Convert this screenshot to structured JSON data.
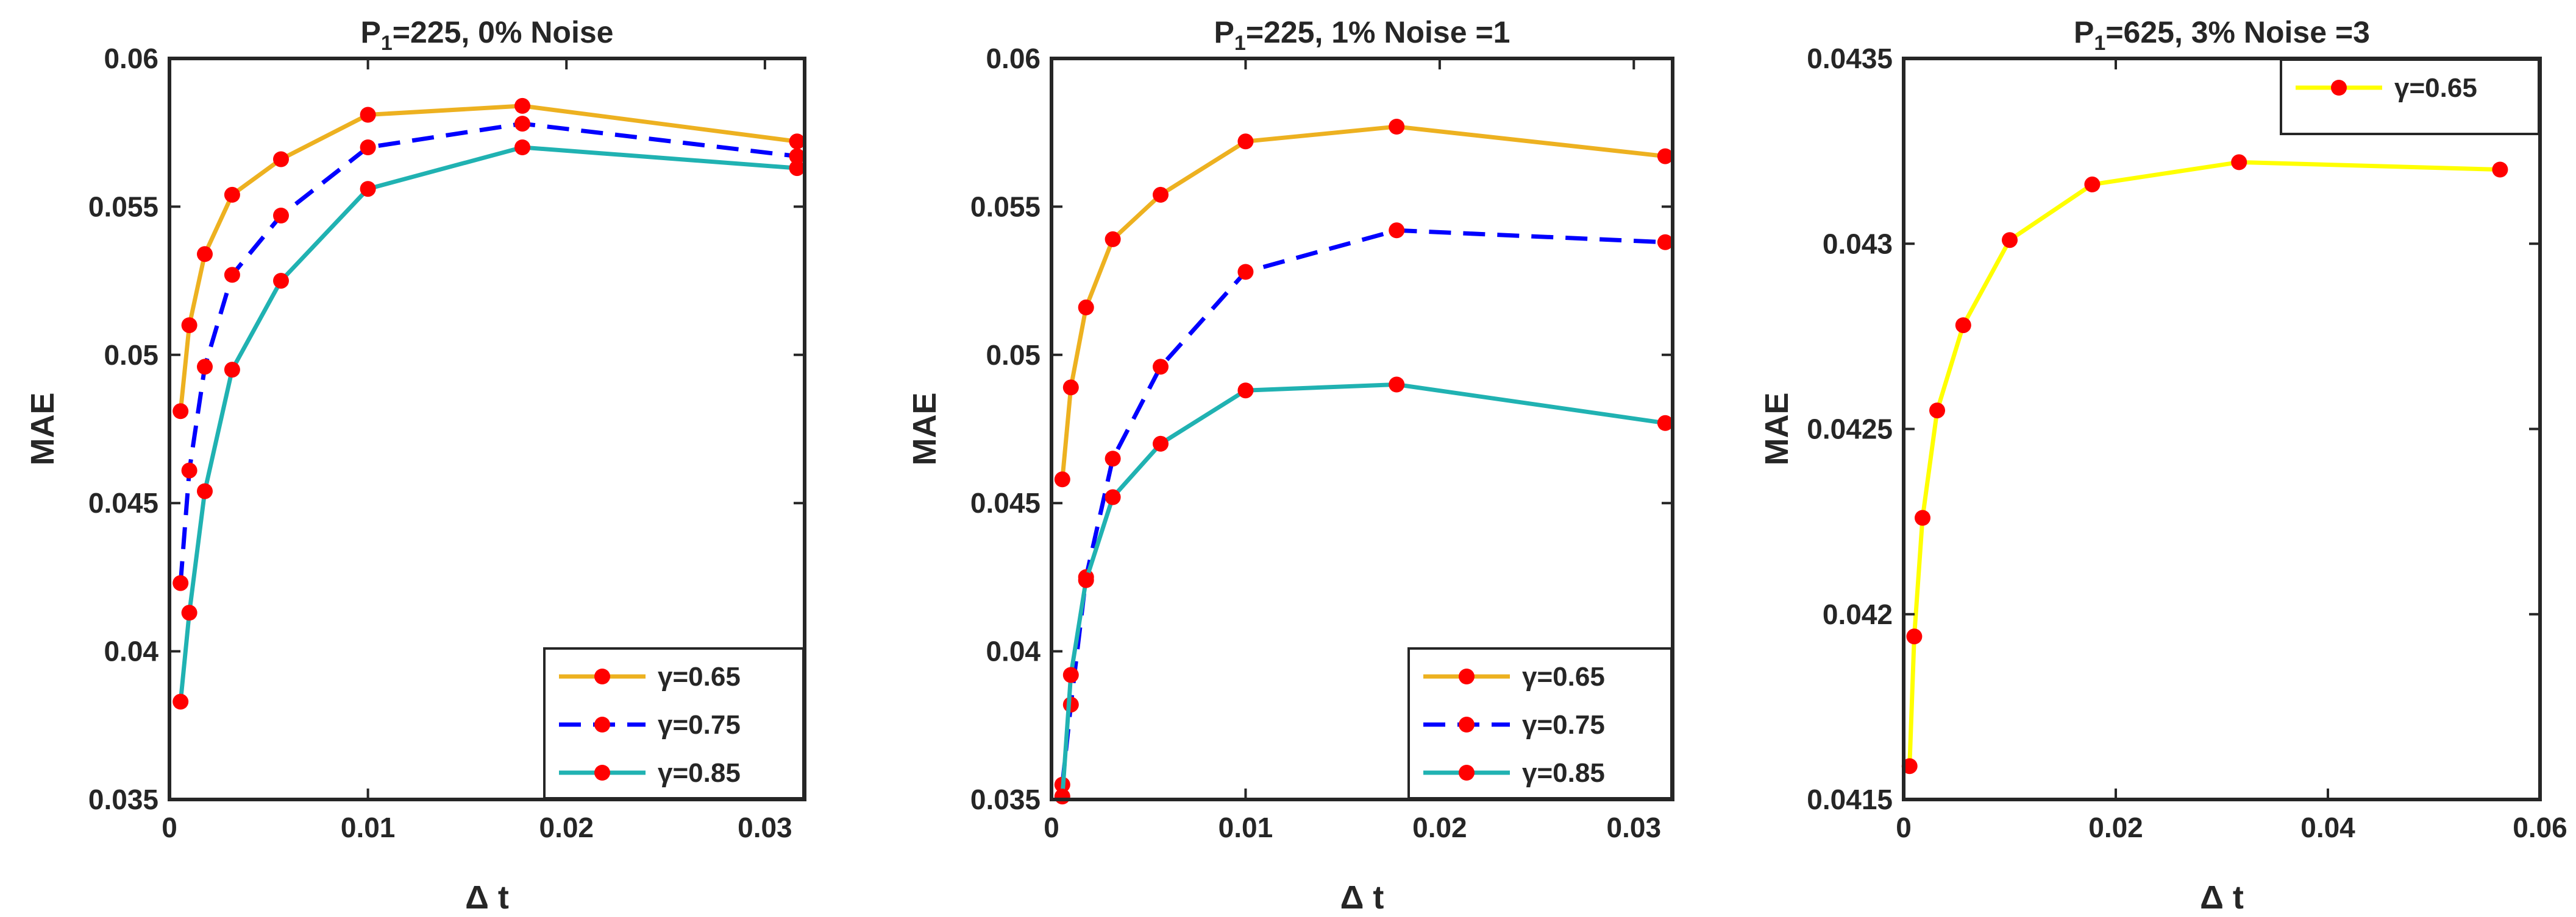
{
  "chart_data": [
    {
      "type": "line",
      "title_main": "P",
      "title_sub": "1",
      "title_rest": "=225, 0% Noise",
      "xlabel": "Δ t",
      "ylabel": "MAE",
      "xlim": [
        0,
        0.032
      ],
      "ylim": [
        0.035,
        0.06
      ],
      "xticks": [
        0,
        0.01,
        0.02,
        0.03
      ],
      "xtick_labels": [
        "0",
        "0.01",
        "0.02",
        "0.03"
      ],
      "yticks": [
        0.035,
        0.04,
        0.045,
        0.05,
        0.055,
        0.06
      ],
      "ytick_labels": [
        "0.035",
        "0.04",
        "0.045",
        "0.05",
        "0.055",
        "0.06"
      ],
      "legend_position": "bottom-right",
      "x": [
        0.00056,
        0.001,
        0.00178,
        0.00316,
        0.00562,
        0.01,
        0.01778,
        0.03162
      ],
      "series": [
        {
          "name": "γ=0.65",
          "color": "#EDB120",
          "dash": "solid",
          "values": [
            0.0481,
            0.051,
            0.0534,
            0.0554,
            0.0566,
            0.0581,
            0.0584,
            0.0572
          ]
        },
        {
          "name": "γ=0.75",
          "color": "#0000FF",
          "dash": "dashed",
          "values": [
            0.0423,
            0.0461,
            0.0496,
            0.0527,
            0.0547,
            0.057,
            0.0578,
            0.0567
          ]
        },
        {
          "name": "γ=0.85",
          "color": "#20B2B2",
          "dash": "solid",
          "values": [
            0.0383,
            0.0413,
            0.0454,
            0.0495,
            0.0525,
            0.0556,
            0.057,
            0.0563
          ]
        }
      ]
    },
    {
      "type": "line",
      "title_main": "P",
      "title_sub": "1",
      "title_rest": "=225, 1% Noise =1",
      "xlabel": "Δ t",
      "ylabel": "MAE",
      "xlim": [
        0,
        0.032
      ],
      "ylim": [
        0.035,
        0.06
      ],
      "xticks": [
        0,
        0.01,
        0.02,
        0.03
      ],
      "xtick_labels": [
        "0",
        "0.01",
        "0.02",
        "0.03"
      ],
      "yticks": [
        0.035,
        0.04,
        0.045,
        0.05,
        0.055,
        0.06
      ],
      "ytick_labels": [
        "0.035",
        "0.04",
        "0.045",
        "0.05",
        "0.055",
        "0.06"
      ],
      "legend_position": "bottom-right",
      "x": [
        0.00056,
        0.001,
        0.00178,
        0.00316,
        0.00562,
        0.01,
        0.01778,
        0.03162
      ],
      "series": [
        {
          "name": "γ=0.65",
          "color": "#EDB120",
          "dash": "solid",
          "values": [
            0.0458,
            0.0489,
            0.0516,
            0.0539,
            0.0554,
            0.0572,
            0.0577,
            0.0567
          ]
        },
        {
          "name": "γ=0.75",
          "color": "#0000FF",
          "dash": "dashed",
          "values": [
            0.0355,
            0.0382,
            0.0425,
            0.0465,
            0.0496,
            0.0528,
            0.0542,
            0.0538
          ]
        },
        {
          "name": "γ=0.85",
          "color": "#20B2B2",
          "dash": "solid",
          "values": [
            0.0351,
            0.0392,
            0.0424,
            0.0452,
            0.047,
            0.0488,
            0.049,
            0.0477
          ]
        }
      ]
    },
    {
      "type": "line",
      "title_main": "P",
      "title_sub": "1",
      "title_rest": "=625, 3% Noise =3",
      "xlabel": "Δ t",
      "ylabel": "MAE",
      "xlim": [
        0,
        0.06
      ],
      "ylim": [
        0.0415,
        0.0435
      ],
      "xticks": [
        0,
        0.02,
        0.04,
        0.06
      ],
      "xtick_labels": [
        "0",
        "0.02",
        "0.04",
        "0.06"
      ],
      "yticks": [
        0.0415,
        0.042,
        0.0425,
        0.043,
        0.0435
      ],
      "ytick_labels": [
        "0.0415",
        "0.042",
        "0.0425",
        "0.043",
        "0.0435"
      ],
      "legend_position": "top-right",
      "x": [
        0.00056,
        0.001,
        0.00178,
        0.00316,
        0.00562,
        0.01,
        0.01778,
        0.03162,
        0.05623
      ],
      "series": [
        {
          "name": "γ=0.65",
          "color": "#FFFF00",
          "dash": "solid",
          "values": [
            0.04159,
            0.04194,
            0.04226,
            0.04255,
            0.04278,
            0.04301,
            0.04316,
            0.04322,
            0.0432
          ]
        }
      ]
    }
  ],
  "colors": {
    "marker": "#FF0000",
    "axis": "#262626"
  }
}
